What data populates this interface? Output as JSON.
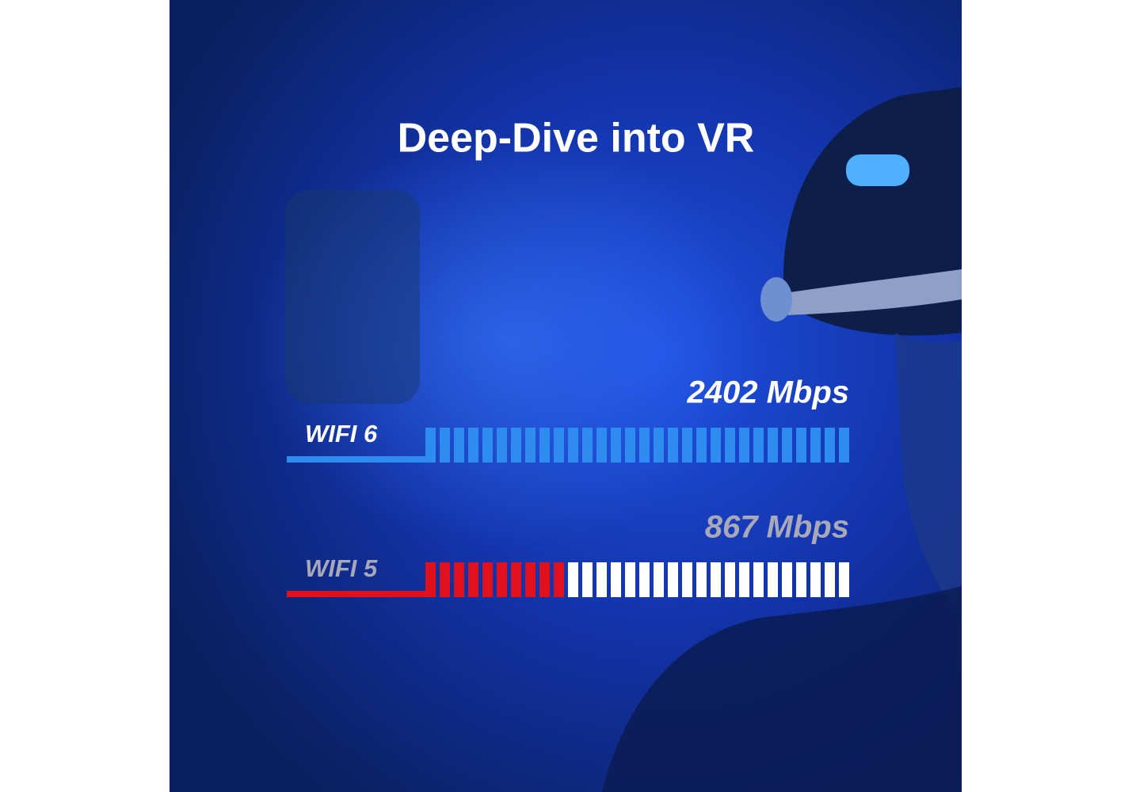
{
  "chart_data": {
    "type": "bar",
    "title": "Deep-Dive into VR",
    "categories": [
      "WIFI 6",
      "WIFI 5"
    ],
    "values": [
      2402,
      867
    ],
    "value_labels": [
      "2402 Mbps",
      "867 Mbps"
    ],
    "colors": [
      "#2e8cf0",
      "#e0101c"
    ],
    "xlim": [
      0,
      2402
    ]
  }
}
